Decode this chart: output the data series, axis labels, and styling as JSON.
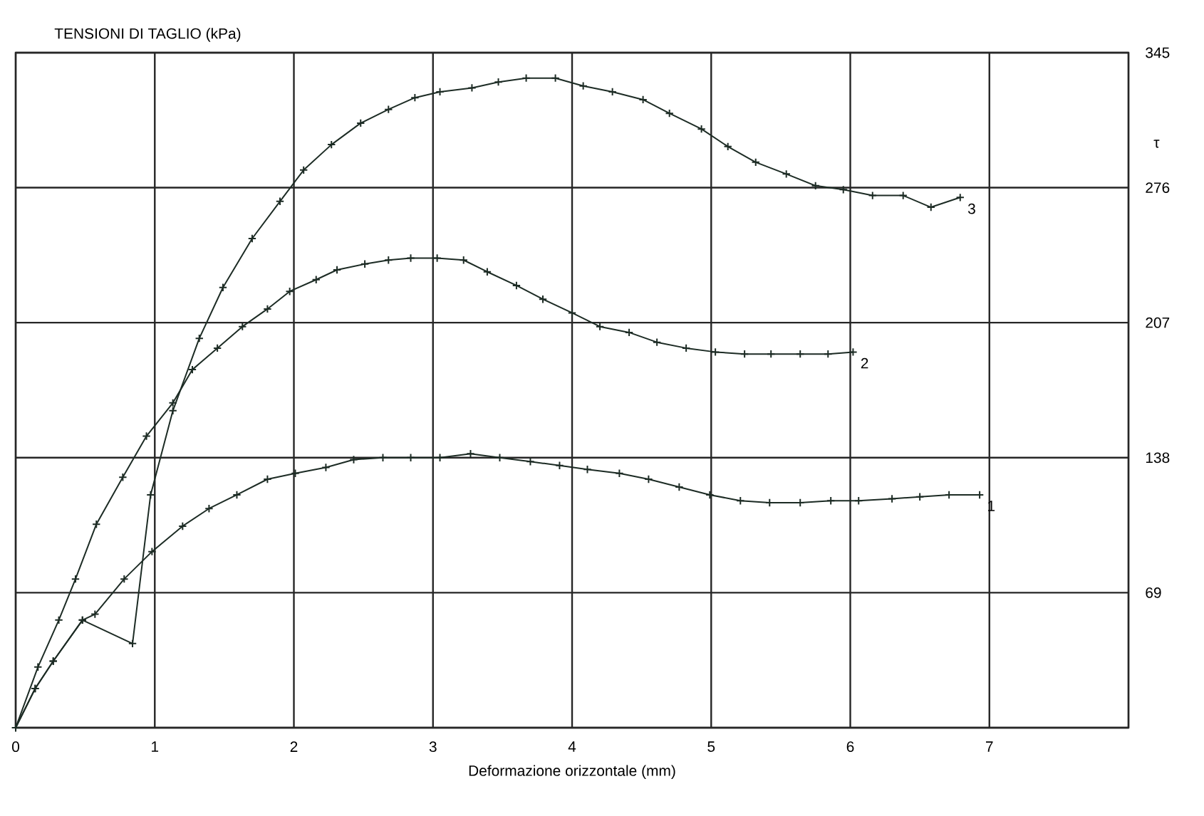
{
  "chart_data": {
    "type": "line",
    "title": "TENSIONI DI TAGLIO (kPa)",
    "xlabel": "Deformazione orizzontale (mm)",
    "ylabel": "τ",
    "xlim": [
      0,
      8
    ],
    "ylim": [
      0,
      345
    ],
    "xticks": [
      0,
      1,
      2,
      3,
      4,
      5,
      6,
      7,
      {
        "value": 8,
        "label": null
      }
    ],
    "yticks": [
      {
        "value": 0,
        "label": null
      },
      69,
      138,
      207,
      276,
      345
    ],
    "grid": true,
    "marker": "cross",
    "line_style": "solid",
    "series": [
      {
        "name": "1",
        "color": "#1c2b24",
        "x": [
          0,
          0.14,
          0.27,
          0.48,
          0.57,
          0.78,
          0.98,
          1.2,
          1.39,
          1.59,
          1.81,
          2.01,
          2.23,
          2.43,
          2.64,
          2.84,
          3.05,
          3.27,
          3.48,
          3.7,
          3.91,
          4.11,
          4.34,
          4.55,
          4.77,
          4.99,
          5.21,
          5.42,
          5.64,
          5.86,
          6.06,
          6.3,
          6.5,
          6.71,
          6.93
        ],
        "values": [
          0,
          20,
          34,
          55,
          58,
          76,
          90,
          103,
          112,
          119,
          127,
          130,
          133,
          137,
          138,
          138,
          138,
          140,
          138,
          136,
          134,
          132,
          130,
          127,
          123,
          119,
          116,
          115,
          115,
          116,
          116,
          117,
          118,
          119,
          119
        ]
      },
      {
        "name": "2",
        "color": "#1c2b24",
        "x": [
          0,
          0.16,
          0.31,
          0.43,
          0.58,
          0.77,
          0.94,
          1.13,
          1.27,
          1.45,
          1.63,
          1.81,
          1.97,
          2.16,
          2.31,
          2.51,
          2.68,
          2.84,
          3.03,
          3.22,
          3.39,
          3.6,
          3.79,
          4.0,
          4.2,
          4.41,
          4.61,
          4.82,
          5.03,
          5.24,
          5.43,
          5.64,
          5.84,
          6.02
        ],
        "values": [
          0,
          31,
          55,
          76,
          104,
          128,
          149,
          166,
          183,
          194,
          205,
          214,
          223,
          229,
          234,
          237,
          239,
          240,
          240,
          239,
          233,
          226,
          219,
          212,
          205,
          202,
          197,
          194,
          192,
          191,
          191,
          191,
          191,
          192
        ]
      },
      {
        "name": "3",
        "color": "#1c2b24",
        "x": [
          0,
          0.14,
          0.27,
          0.48,
          0.84,
          0.97,
          1.13,
          1.32,
          1.49,
          1.7,
          1.9,
          2.07,
          2.27,
          2.48,
          2.68,
          2.87,
          3.05,
          3.28,
          3.47,
          3.67,
          3.88,
          4.08,
          4.29,
          4.51,
          4.7,
          4.93,
          5.12,
          5.32,
          5.54,
          5.75,
          5.95,
          6.16,
          6.38,
          6.58,
          6.79
        ],
        "values": [
          0,
          20,
          34,
          55,
          43,
          119,
          162,
          199,
          225,
          250,
          269,
          285,
          298,
          309,
          316,
          322,
          325,
          327,
          330,
          332,
          332,
          328,
          325,
          321,
          314,
          306,
          297,
          289,
          283,
          277,
          275,
          272,
          272,
          266,
          271
        ]
      }
    ]
  }
}
